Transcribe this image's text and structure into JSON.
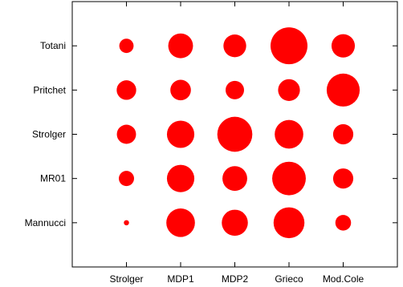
{
  "chart_data": {
    "type": "scatter",
    "subtype": "bubble-matrix",
    "title": "",
    "xlabel": "",
    "ylabel": "",
    "x_categories": [
      "Strolger",
      "MDP1",
      "MDP2",
      "Grieco",
      "Mod.Cole"
    ],
    "y_categories": [
      "Mannucci",
      "MR01",
      "Strolger",
      "Pritchet",
      "Totani"
    ],
    "xlim": [
      0,
      6
    ],
    "ylim": [
      0,
      6
    ],
    "grid": false,
    "legend": "none",
    "marker_color": "#ff0000",
    "points": [
      {
        "x": "Strolger",
        "y": "Totani",
        "size": 0.15
      },
      {
        "x": "MDP1",
        "y": "Totani",
        "size": 0.45
      },
      {
        "x": "MDP2",
        "y": "Totani",
        "size": 0.38
      },
      {
        "x": "Grieco",
        "y": "Totani",
        "size": 1.0
      },
      {
        "x": "Mod.Cole",
        "y": "Totani",
        "size": 0.4
      },
      {
        "x": "Strolger",
        "y": "Pritchet",
        "size": 0.28
      },
      {
        "x": "MDP1",
        "y": "Pritchet",
        "size": 0.31
      },
      {
        "x": "MDP2",
        "y": "Pritchet",
        "size": 0.25
      },
      {
        "x": "Grieco",
        "y": "Pritchet",
        "size": 0.35
      },
      {
        "x": "Mod.Cole",
        "y": "Pritchet",
        "size": 0.8
      },
      {
        "x": "Strolger",
        "y": "Strolger",
        "size": 0.27
      },
      {
        "x": "MDP1",
        "y": "Strolger",
        "size": 0.55
      },
      {
        "x": "MDP2",
        "y": "Strolger",
        "size": 0.9
      },
      {
        "x": "Grieco",
        "y": "Strolger",
        "size": 0.6
      },
      {
        "x": "Mod.Cole",
        "y": "Strolger",
        "size": 0.3
      },
      {
        "x": "Strolger",
        "y": "MR01",
        "size": 0.17
      },
      {
        "x": "MDP1",
        "y": "MR01",
        "size": 0.55
      },
      {
        "x": "MDP2",
        "y": "MR01",
        "size": 0.45
      },
      {
        "x": "Grieco",
        "y": "MR01",
        "size": 0.83
      },
      {
        "x": "Mod.Cole",
        "y": "MR01",
        "size": 0.3
      },
      {
        "x": "Strolger",
        "y": "Mannucci",
        "size": 0.02
      },
      {
        "x": "MDP1",
        "y": "Mannucci",
        "size": 0.6
      },
      {
        "x": "MDP2",
        "y": "Mannucci",
        "size": 0.5
      },
      {
        "x": "Grieco",
        "y": "Mannucci",
        "size": 0.7
      },
      {
        "x": "Mod.Cole",
        "y": "Mannucci",
        "size": 0.18
      }
    ]
  }
}
